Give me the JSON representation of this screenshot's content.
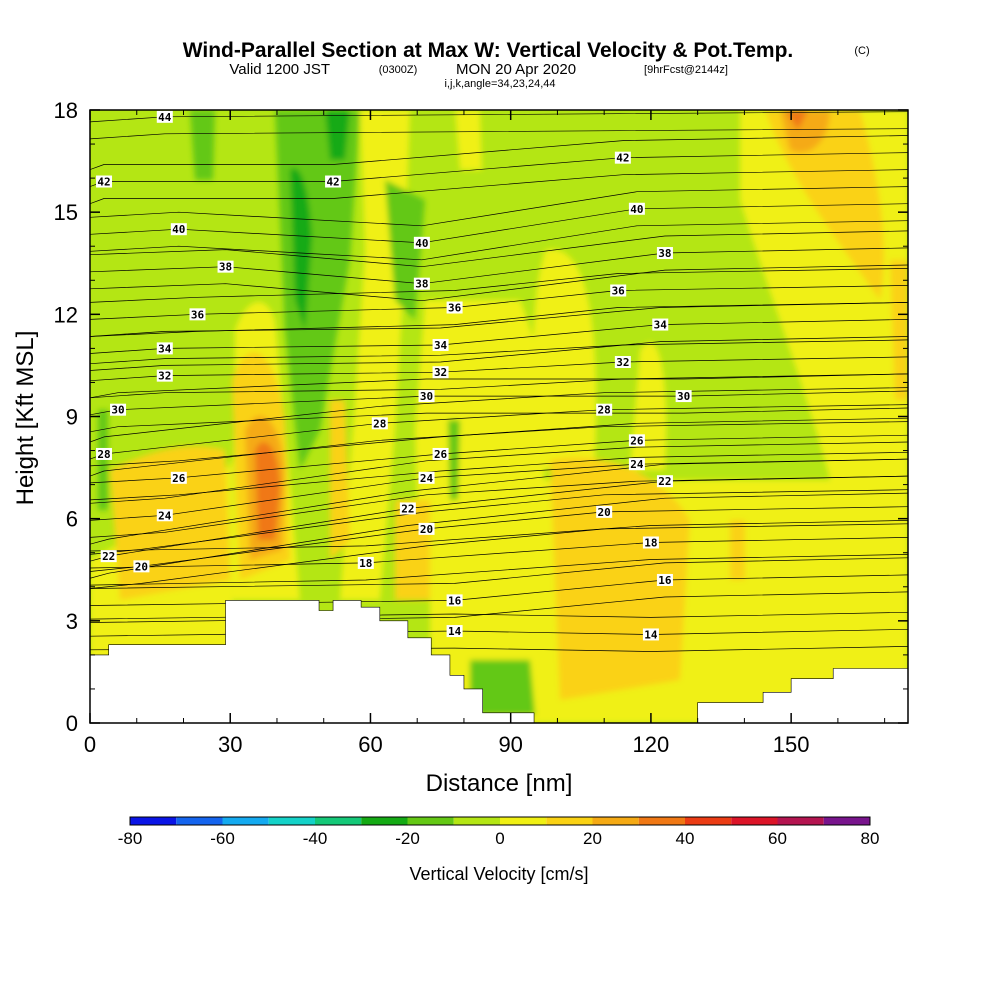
{
  "header": {
    "title": "Wind-Parallel Section at Max W: Vertical Velocity & Pot.Temp.",
    "copyright": "(C)",
    "valid_prefix": "Valid 1200 JST",
    "valid_utc": "(0300Z)",
    "valid_date": "MON 20 Apr 2020",
    "forecast": "[9hrFcst@2144z]",
    "indices": "i,j,k,angle=34,23,24,44"
  },
  "chart_data": {
    "type": "heatmap",
    "xlabel": "Distance [nm]",
    "ylabel": "Height [Kft MSL]",
    "xlim": [
      0,
      175
    ],
    "ylim": [
      0,
      18
    ],
    "x_ticks": [
      "0",
      "30",
      "60",
      "90",
      "120",
      "150"
    ],
    "y_ticks": [
      "0",
      "3",
      "6",
      "9",
      "12",
      "15",
      "18"
    ],
    "colorbar": {
      "title": "Vertical Velocity [cm/s]",
      "tick_labels": [
        "-80",
        "-60",
        "-40",
        "-20",
        "0",
        "20",
        "40",
        "60",
        "80"
      ],
      "colors": [
        "#0a14e6",
        "#1464ee",
        "#14aaf0",
        "#14d2c8",
        "#14c878",
        "#14aa14",
        "#64c814",
        "#b4e614",
        "#f0f014",
        "#fad214",
        "#f5aa14",
        "#f07814",
        "#eb3c14",
        "#dc1428",
        "#b41450",
        "#78148c"
      ]
    },
    "potential_temperature": {
      "levels": [
        14,
        16,
        18,
        20,
        22,
        24,
        26,
        28,
        30,
        32,
        34,
        36,
        38,
        40,
        42,
        44
      ],
      "labels": [
        {
          "text": "44",
          "x": 16,
          "y": 17.8
        },
        {
          "text": "42",
          "x": 3,
          "y": 15.9
        },
        {
          "text": "42",
          "x": 52,
          "y": 15.9
        },
        {
          "text": "42",
          "x": 114,
          "y": 16.6
        },
        {
          "text": "40",
          "x": 19,
          "y": 14.5
        },
        {
          "text": "40",
          "x": 71,
          "y": 14.1
        },
        {
          "text": "40",
          "x": 117,
          "y": 15.1
        },
        {
          "text": "38",
          "x": 29,
          "y": 13.4
        },
        {
          "text": "38",
          "x": 71,
          "y": 12.9
        },
        {
          "text": "38",
          "x": 123,
          "y": 13.8
        },
        {
          "text": "36",
          "x": 23,
          "y": 12.0
        },
        {
          "text": "36",
          "x": 78,
          "y": 12.2
        },
        {
          "text": "36",
          "x": 113,
          "y": 12.7
        },
        {
          "text": "34",
          "x": 16,
          "y": 11.0
        },
        {
          "text": "34",
          "x": 75,
          "y": 11.1
        },
        {
          "text": "34",
          "x": 122,
          "y": 11.7
        },
        {
          "text": "32",
          "x": 16,
          "y": 10.2
        },
        {
          "text": "32",
          "x": 75,
          "y": 10.3
        },
        {
          "text": "32",
          "x": 114,
          "y": 10.6
        },
        {
          "text": "30",
          "x": 6,
          "y": 9.2
        },
        {
          "text": "30",
          "x": 72,
          "y": 9.6
        },
        {
          "text": "30",
          "x": 127,
          "y": 9.6
        },
        {
          "text": "28",
          "x": 3,
          "y": 7.9
        },
        {
          "text": "28",
          "x": 62,
          "y": 8.8
        },
        {
          "text": "28",
          "x": 110,
          "y": 9.2
        },
        {
          "text": "26",
          "x": 19,
          "y": 7.2
        },
        {
          "text": "26",
          "x": 75,
          "y": 7.9
        },
        {
          "text": "26",
          "x": 117,
          "y": 8.3
        },
        {
          "text": "24",
          "x": 16,
          "y": 6.1
        },
        {
          "text": "24",
          "x": 72,
          "y": 7.2
        },
        {
          "text": "24",
          "x": 117,
          "y": 7.6
        },
        {
          "text": "22",
          "x": 4,
          "y": 4.9
        },
        {
          "text": "22",
          "x": 68,
          "y": 6.3
        },
        {
          "text": "22",
          "x": 123,
          "y": 7.1
        },
        {
          "text": "20",
          "x": 11,
          "y": 4.6
        },
        {
          "text": "20",
          "x": 72,
          "y": 5.7
        },
        {
          "text": "20",
          "x": 110,
          "y": 6.2
        },
        {
          "text": "18",
          "x": 59,
          "y": 4.7
        },
        {
          "text": "18",
          "x": 120,
          "y": 5.3
        },
        {
          "text": "16",
          "x": 78,
          "y": 3.6
        },
        {
          "text": "16",
          "x": 123,
          "y": 4.2
        },
        {
          "text": "14",
          "x": 78,
          "y": 2.7
        },
        {
          "text": "14",
          "x": 120,
          "y": 2.6
        }
      ]
    },
    "terrain_profile": [
      [
        0,
        2.0
      ],
      [
        4,
        2.0
      ],
      [
        4,
        2.3
      ],
      [
        29,
        2.3
      ],
      [
        29,
        3.6
      ],
      [
        49,
        3.6
      ],
      [
        49,
        3.3
      ],
      [
        52,
        3.3
      ],
      [
        52,
        3.6
      ],
      [
        58,
        3.6
      ],
      [
        58,
        3.4
      ],
      [
        62,
        3.4
      ],
      [
        62,
        3.0
      ],
      [
        68,
        3.0
      ],
      [
        68,
        2.5
      ],
      [
        73,
        2.5
      ],
      [
        73,
        2.0
      ],
      [
        77,
        2.0
      ],
      [
        77,
        1.4
      ],
      [
        80,
        1.4
      ],
      [
        80,
        1.0
      ],
      [
        84,
        1.0
      ],
      [
        84,
        0.3
      ],
      [
        95,
        0.3
      ],
      [
        95,
        0.0
      ],
      [
        130,
        0.0
      ],
      [
        130,
        0.6
      ],
      [
        144,
        0.6
      ],
      [
        144,
        0.9
      ],
      [
        150,
        0.9
      ],
      [
        150,
        1.3
      ],
      [
        159,
        1.3
      ],
      [
        159,
        1.6
      ],
      [
        175,
        1.6
      ]
    ]
  }
}
